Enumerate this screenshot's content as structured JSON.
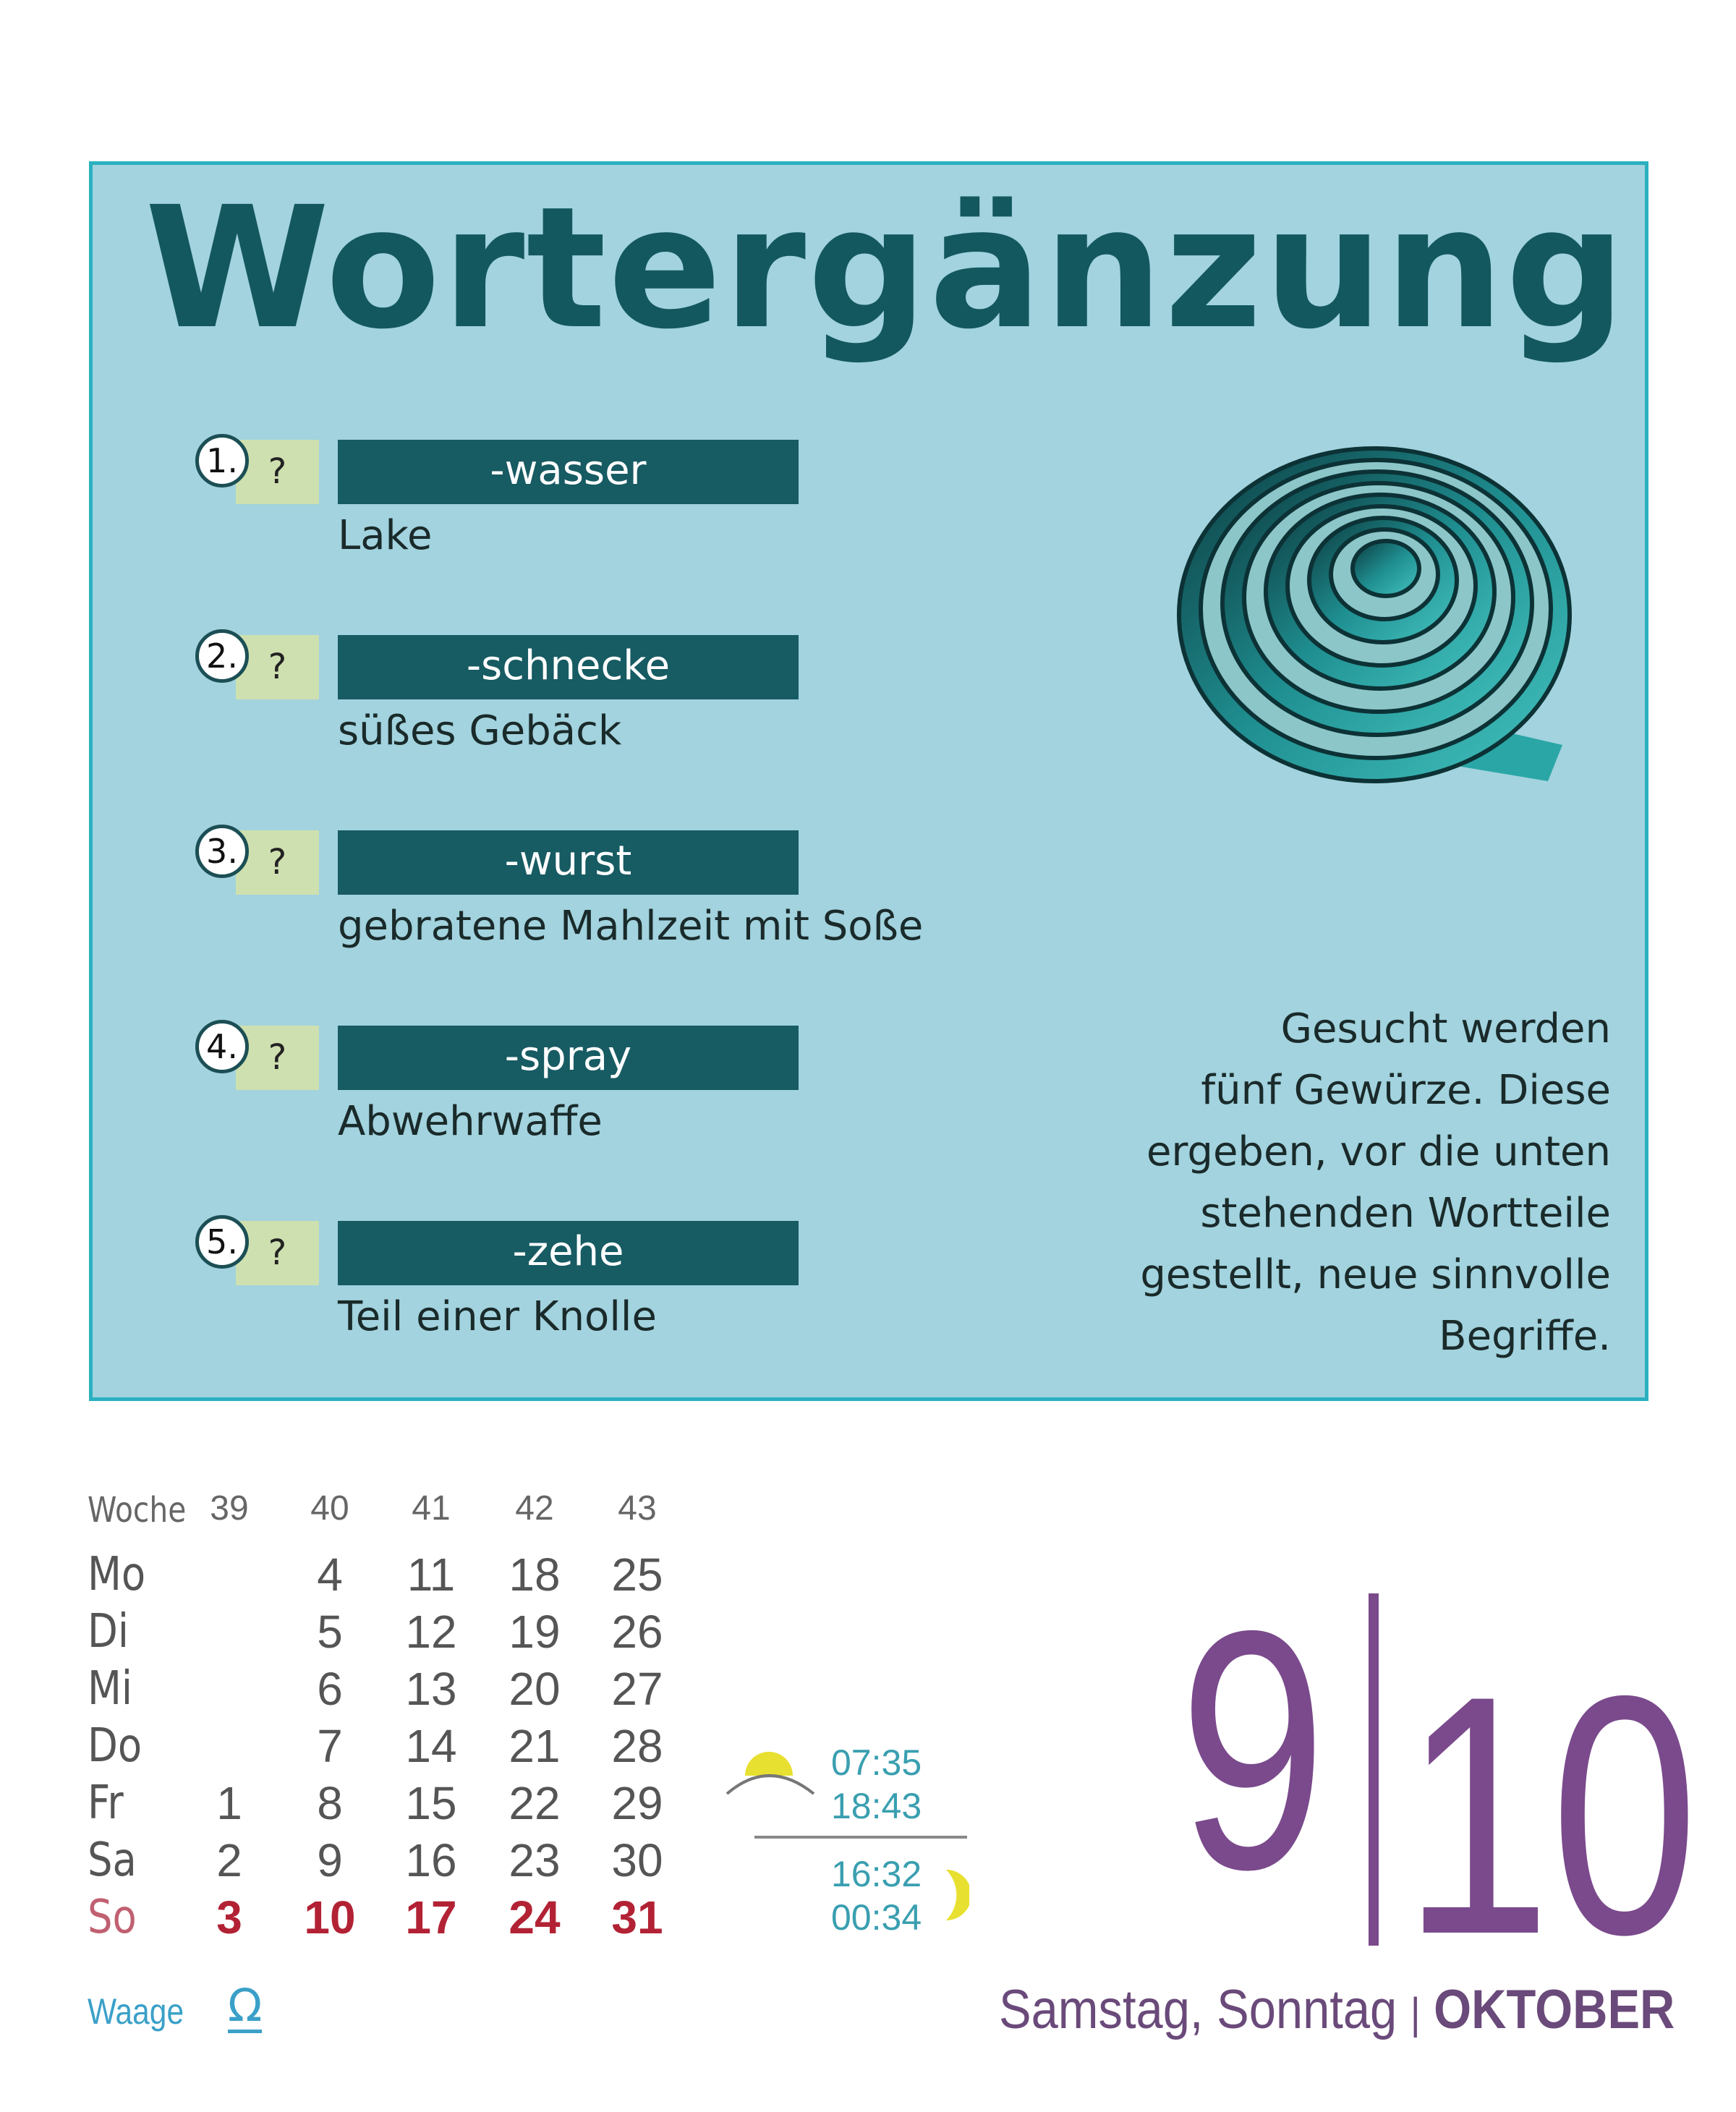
{
  "puzzle": {
    "title": "Wortergänzung",
    "items": [
      {
        "number": "1.",
        "placeholder": "?",
        "suffix": "-wasser",
        "clue": "Lake"
      },
      {
        "number": "2.",
        "placeholder": "?",
        "suffix": "-schnecke",
        "clue": "süßes Gebäck"
      },
      {
        "number": "3.",
        "placeholder": "?",
        "suffix": "-wurst",
        "clue": "gebratene Mahlzeit mit Soße"
      },
      {
        "number": "4.",
        "placeholder": "?",
        "suffix": "-spray",
        "clue": "Abwehrwaffe"
      },
      {
        "number": "5.",
        "placeholder": "?",
        "suffix": "-zehe",
        "clue": "Teil einer Knolle"
      }
    ],
    "hint_lines": [
      "Gesucht werden",
      "fünf Gewürze. Diese",
      "ergeben, vor die unten",
      "stehenden Wortteile",
      "gestellt, neue sinnvolle",
      "Begriffe."
    ]
  },
  "calendar": {
    "week_label": "Woche",
    "weeks": [
      "39",
      "40",
      "41",
      "42",
      "43"
    ],
    "days": [
      {
        "label": "Mo",
        "dates": [
          "",
          "4",
          "11",
          "18",
          "25"
        ]
      },
      {
        "label": "Di",
        "dates": [
          "",
          "5",
          "12",
          "19",
          "26"
        ]
      },
      {
        "label": "Mi",
        "dates": [
          "",
          "6",
          "13",
          "20",
          "27"
        ]
      },
      {
        "label": "Do",
        "dates": [
          "",
          "7",
          "14",
          "21",
          "28"
        ]
      },
      {
        "label": "Fr",
        "dates": [
          "1",
          "8",
          "15",
          "22",
          "29"
        ]
      },
      {
        "label": "Sa",
        "dates": [
          "2",
          "9",
          "16",
          "23",
          "30"
        ]
      },
      {
        "label": "So",
        "dates": [
          "3",
          "10",
          "17",
          "24",
          "31"
        ]
      }
    ],
    "sunrise": "07:35",
    "sunset": "18:43",
    "moonrise": "16:32",
    "moonset": "00:34",
    "zodiac": "Waage",
    "zodiac_symbol": "Ω"
  },
  "date": {
    "day1": "9",
    "day2": "10",
    "weekdays": "Samstag, Sonntag",
    "separator": "|",
    "month": "OKTOBER"
  },
  "colors": {
    "card": "#a2d3de",
    "border": "#2ab0c0",
    "title": "#14585f",
    "sunday": "#b22234",
    "date": "#7a4a8c",
    "accent": "#3a9fb0"
  }
}
